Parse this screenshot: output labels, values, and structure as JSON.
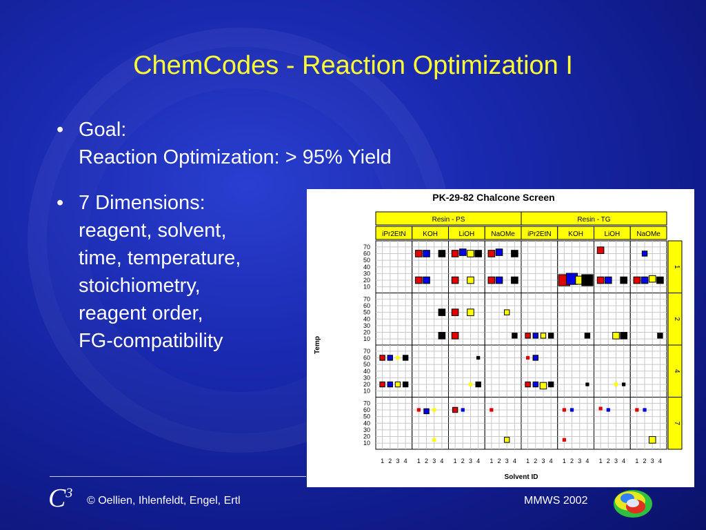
{
  "slide": {
    "title": "ChemCodes - Reaction Optimization I",
    "bullets": [
      {
        "lines": [
          "Goal:",
          "Reaction Optimization: > 95% Yield"
        ]
      },
      {
        "lines": [
          "7 Dimensions:",
          "reagent, solvent,",
          "time, temperature,",
          "stoichiometry,",
          "reagent order,",
          "FG-compatibility"
        ]
      }
    ],
    "bullet_glyph": "•",
    "footer": {
      "logo_letter": "C",
      "logo_sup": "3",
      "credits": "© Oellien, Ihlenfeldt, Engel, Ertl",
      "event": "MMWS 2002"
    },
    "logo_icon": "torus-molecule-icon"
  },
  "chart_data": {
    "type": "scatter",
    "title": "PK-29-82 Chalcone Screen",
    "xlabel": "Solvent ID",
    "ylabel": "Temp",
    "resins": [
      "Resin - PS",
      "Resin - TG"
    ],
    "reagents": [
      "iPr2EtN",
      "KOH",
      "LiOH",
      "NaOMe",
      "iPr2EtN",
      "KOH",
      "LiOH",
      "NaOMe"
    ],
    "strips": [
      "1",
      "2",
      "4",
      "7"
    ],
    "x_ticks": [
      "1",
      "2",
      "3",
      "4"
    ],
    "y_ticks": [
      "70",
      "60",
      "50",
      "40",
      "30",
      "20",
      "10"
    ],
    "ylim": [
      5,
      75
    ],
    "xlim": [
      0.5,
      4.5
    ],
    "colors": {
      "1": "#e00000",
      "2": "#0000e0",
      "3": "#ffff00",
      "4": "#000000"
    },
    "points": [
      {
        "col": 1,
        "row": 0,
        "x": 1,
        "y": 60,
        "s": 3
      },
      {
        "col": 1,
        "row": 0,
        "x": 2,
        "y": 60,
        "s": 3
      },
      {
        "col": 1,
        "row": 0,
        "x": 4,
        "y": 60,
        "s": 3
      },
      {
        "col": 1,
        "row": 0,
        "x": 1,
        "y": 20,
        "s": 3
      },
      {
        "col": 1,
        "row": 0,
        "x": 2,
        "y": 20,
        "s": 3
      },
      {
        "col": 2,
        "row": 0,
        "x": 1,
        "y": 60,
        "s": 3
      },
      {
        "col": 2,
        "row": 0,
        "x": 2,
        "y": 62,
        "s": 3
      },
      {
        "col": 2,
        "row": 0,
        "x": 3,
        "y": 60,
        "s": 3
      },
      {
        "col": 2,
        "row": 0,
        "x": 4,
        "y": 60,
        "s": 3
      },
      {
        "col": 2,
        "row": 0,
        "x": 1,
        "y": 20,
        "s": 3
      },
      {
        "col": 2,
        "row": 0,
        "x": 3,
        "y": 20,
        "s": 3
      },
      {
        "col": 3,
        "row": 0,
        "x": 1,
        "y": 60,
        "s": 3
      },
      {
        "col": 3,
        "row": 0,
        "x": 2,
        "y": 62,
        "s": 3
      },
      {
        "col": 3,
        "row": 0,
        "x": 4,
        "y": 60,
        "s": 3
      },
      {
        "col": 3,
        "row": 0,
        "x": 1,
        "y": 20,
        "s": 3
      },
      {
        "col": 3,
        "row": 0,
        "x": 2,
        "y": 20,
        "s": 3
      },
      {
        "col": 3,
        "row": 0,
        "x": 4,
        "y": 20,
        "s": 3
      },
      {
        "col": 5,
        "row": 0,
        "x": 1,
        "y": 20,
        "s": 6
      },
      {
        "col": 5,
        "row": 0,
        "x": 2,
        "y": 22,
        "s": 6
      },
      {
        "col": 5,
        "row": 0,
        "x": 3,
        "y": 20,
        "s": 4
      },
      {
        "col": 5,
        "row": 0,
        "x": 4,
        "y": 20,
        "s": 6
      },
      {
        "col": 6,
        "row": 0,
        "x": 1,
        "y": 65,
        "s": 3
      },
      {
        "col": 6,
        "row": 0,
        "x": 1,
        "y": 20,
        "s": 3
      },
      {
        "col": 6,
        "row": 0,
        "x": 2,
        "y": 20,
        "s": 3
      },
      {
        "col": 6,
        "row": 0,
        "x": 4,
        "y": 20,
        "s": 3
      },
      {
        "col": 7,
        "row": 0,
        "x": 2,
        "y": 60,
        "s": 2
      },
      {
        "col": 7,
        "row": 0,
        "x": 1,
        "y": 20,
        "s": 3
      },
      {
        "col": 7,
        "row": 0,
        "x": 2,
        "y": 20,
        "s": 3
      },
      {
        "col": 7,
        "row": 0,
        "x": 3,
        "y": 22,
        "s": 3
      },
      {
        "col": 7,
        "row": 0,
        "x": 4,
        "y": 20,
        "s": 3
      },
      {
        "col": 1,
        "row": 1,
        "x": 4,
        "y": 50,
        "s": 3
      },
      {
        "col": 1,
        "row": 1,
        "x": 4,
        "y": 15,
        "s": 3
      },
      {
        "col": 2,
        "row": 1,
        "x": 1,
        "y": 50,
        "s": 3
      },
      {
        "col": 2,
        "row": 1,
        "x": 3,
        "y": 50,
        "s": 3
      },
      {
        "col": 2,
        "row": 1,
        "x": 1,
        "y": 15,
        "s": 3
      },
      {
        "col": 3,
        "row": 1,
        "x": 3,
        "y": 50,
        "s": 2
      },
      {
        "col": 3,
        "row": 1,
        "x": 4,
        "y": 15,
        "s": 2
      },
      {
        "col": 4,
        "row": 1,
        "x": 1,
        "y": 15,
        "s": 2
      },
      {
        "col": 4,
        "row": 1,
        "x": 2,
        "y": 15,
        "s": 2
      },
      {
        "col": 4,
        "row": 1,
        "x": 3,
        "y": 15,
        "s": 2
      },
      {
        "col": 4,
        "row": 1,
        "x": 4,
        "y": 15,
        "s": 2
      },
      {
        "col": 5,
        "row": 1,
        "x": 4,
        "y": 15,
        "s": 2
      },
      {
        "col": 6,
        "row": 1,
        "x": 3,
        "y": 15,
        "s": 3
      },
      {
        "col": 6,
        "row": 1,
        "x": 4,
        "y": 15,
        "s": 3
      },
      {
        "col": 7,
        "row": 1,
        "x": 4,
        "y": 15,
        "s": 2
      },
      {
        "col": 0,
        "row": 2,
        "x": 1,
        "y": 60,
        "s": 2
      },
      {
        "col": 0,
        "row": 2,
        "x": 2,
        "y": 60,
        "s": 2
      },
      {
        "col": 0,
        "row": 2,
        "x": 3,
        "y": 60,
        "s": 1
      },
      {
        "col": 0,
        "row": 2,
        "x": 4,
        "y": 60,
        "s": 2
      },
      {
        "col": 0,
        "row": 2,
        "x": 1,
        "y": 20,
        "s": 2
      },
      {
        "col": 0,
        "row": 2,
        "x": 2,
        "y": 20,
        "s": 2
      },
      {
        "col": 0,
        "row": 2,
        "x": 3,
        "y": 20,
        "s": 2
      },
      {
        "col": 0,
        "row": 2,
        "x": 4,
        "y": 20,
        "s": 2
      },
      {
        "col": 2,
        "row": 2,
        "x": 4,
        "y": 60,
        "s": 1
      },
      {
        "col": 2,
        "row": 2,
        "x": 3,
        "y": 20,
        "s": 1
      },
      {
        "col": 2,
        "row": 2,
        "x": 4,
        "y": 20,
        "s": 2
      },
      {
        "col": 4,
        "row": 2,
        "x": 1,
        "y": 60,
        "s": 1
      },
      {
        "col": 4,
        "row": 2,
        "x": 2,
        "y": 60,
        "s": 2
      },
      {
        "col": 4,
        "row": 2,
        "x": 1,
        "y": 20,
        "s": 2
      },
      {
        "col": 4,
        "row": 2,
        "x": 2,
        "y": 20,
        "s": 2
      },
      {
        "col": 4,
        "row": 2,
        "x": 3,
        "y": 18,
        "s": 3
      },
      {
        "col": 4,
        "row": 2,
        "x": 4,
        "y": 20,
        "s": 2
      },
      {
        "col": 5,
        "row": 2,
        "x": 4,
        "y": 20,
        "s": 1
      },
      {
        "col": 6,
        "row": 2,
        "x": 3,
        "y": 20,
        "s": 1
      },
      {
        "col": 6,
        "row": 2,
        "x": 4,
        "y": 20,
        "s": 1
      },
      {
        "col": 1,
        "row": 3,
        "x": 1,
        "y": 60,
        "s": 1
      },
      {
        "col": 1,
        "row": 3,
        "x": 2,
        "y": 58,
        "s": 2
      },
      {
        "col": 1,
        "row": 3,
        "x": 3,
        "y": 60,
        "s": 1
      },
      {
        "col": 1,
        "row": 3,
        "x": 3,
        "y": 15,
        "s": 1
      },
      {
        "col": 2,
        "row": 3,
        "x": 1,
        "y": 60,
        "s": 2
      },
      {
        "col": 2,
        "row": 3,
        "x": 2,
        "y": 60,
        "s": 1
      },
      {
        "col": 3,
        "row": 3,
        "x": 1,
        "y": 60,
        "s": 1
      },
      {
        "col": 3,
        "row": 3,
        "x": 3,
        "y": 15,
        "s": 2
      },
      {
        "col": 5,
        "row": 3,
        "x": 1,
        "y": 60,
        "s": 1
      },
      {
        "col": 5,
        "row": 3,
        "x": 2,
        "y": 60,
        "s": 1
      },
      {
        "col": 5,
        "row": 3,
        "x": 1,
        "y": 15,
        "s": 1
      },
      {
        "col": 6,
        "row": 3,
        "x": 1,
        "y": 62,
        "s": 1
      },
      {
        "col": 6,
        "row": 3,
        "x": 2,
        "y": 60,
        "s": 1
      },
      {
        "col": 7,
        "row": 3,
        "x": 1,
        "y": 60,
        "s": 1
      },
      {
        "col": 7,
        "row": 3,
        "x": 2,
        "y": 60,
        "s": 1
      },
      {
        "col": 7,
        "row": 3,
        "x": 3,
        "y": 15,
        "s": 3
      }
    ]
  }
}
